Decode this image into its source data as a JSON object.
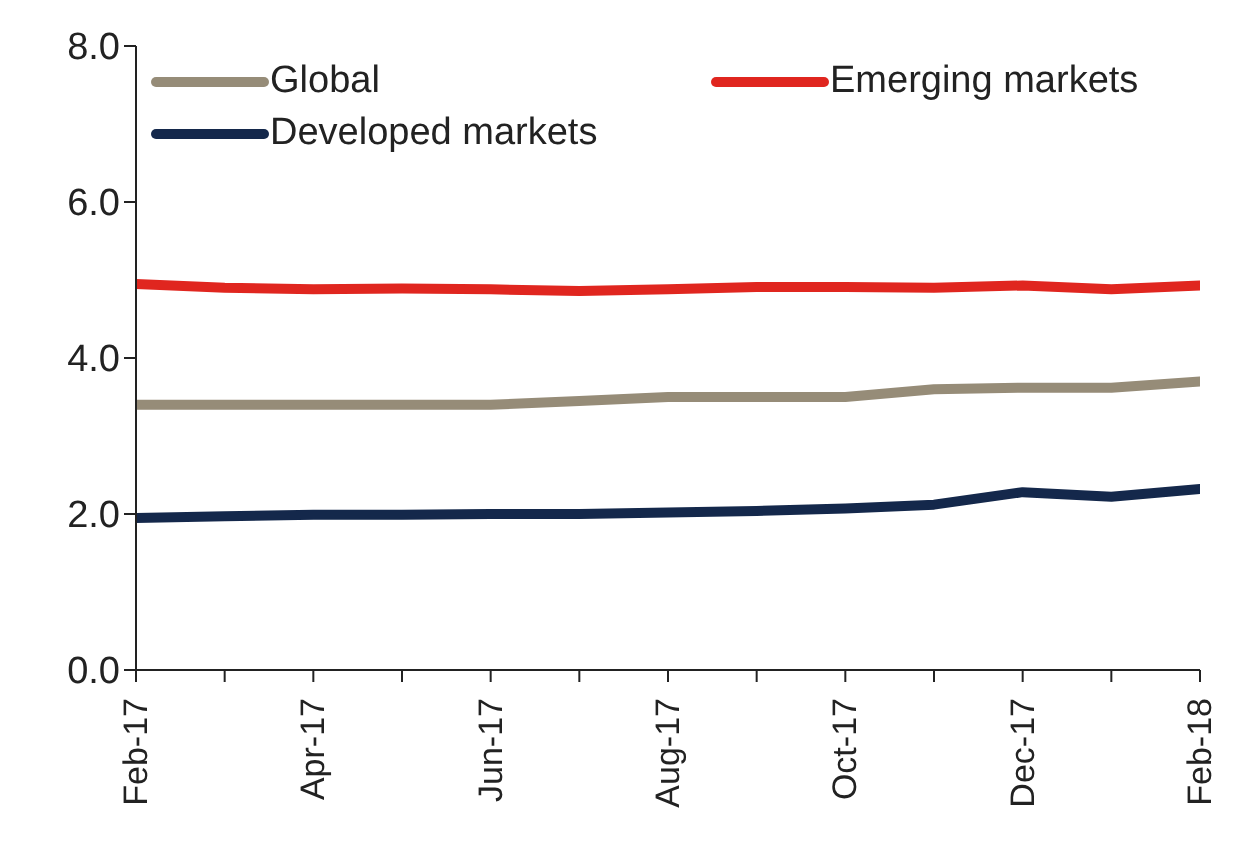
{
  "chart_data": {
    "type": "line",
    "categories": [
      "Feb-17",
      null,
      "Apr-17",
      null,
      "Jun-17",
      null,
      "Aug-17",
      null,
      "Oct-17",
      null,
      "Dec-17",
      null,
      "Feb-18"
    ],
    "series": [
      {
        "name": "Global",
        "color": "#968c78",
        "values": [
          3.4,
          3.4,
          3.4,
          3.4,
          3.4,
          3.45,
          3.5,
          3.5,
          3.5,
          3.6,
          3.62,
          3.62,
          3.7
        ]
      },
      {
        "name": "Emerging markets",
        "color": "#e0261f",
        "values": [
          4.95,
          4.9,
          4.88,
          4.89,
          4.88,
          4.86,
          4.88,
          4.91,
          4.91,
          4.9,
          4.93,
          4.88,
          4.93
        ]
      },
      {
        "name": "Developed markets",
        "color": "#14284b",
        "values": [
          1.95,
          1.97,
          1.99,
          1.99,
          2.0,
          2.0,
          2.02,
          2.04,
          2.07,
          2.12,
          2.28,
          2.22,
          2.32
        ]
      }
    ],
    "ylim": [
      0,
      8
    ],
    "yticks": [
      {
        "value": 0,
        "label": "0.0"
      },
      {
        "value": 2,
        "label": "2.0"
      },
      {
        "value": 4,
        "label": "4.0"
      },
      {
        "value": 6,
        "label": "6.0"
      },
      {
        "value": 8,
        "label": "8.0"
      }
    ],
    "grid": false,
    "legend": "top",
    "marker": "none",
    "line_style": "solid"
  }
}
